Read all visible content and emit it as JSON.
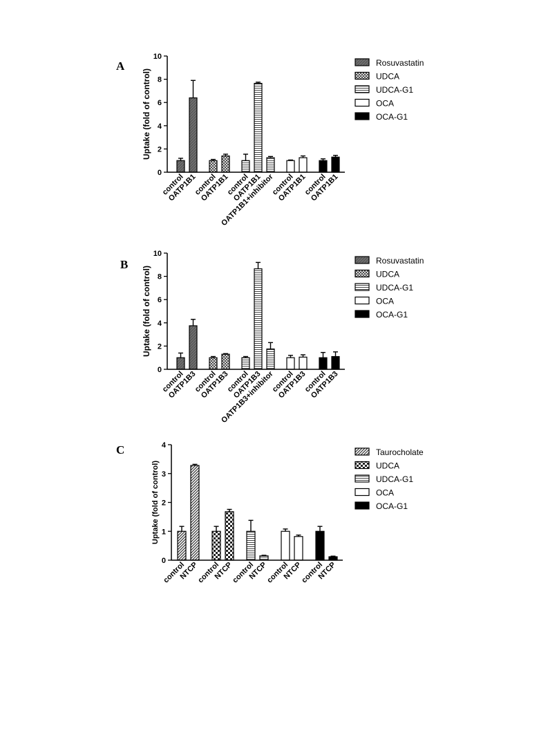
{
  "chart_data": [
    {
      "type": "bar",
      "panel": "A",
      "ylabel": "Uptake (fold of control)",
      "ylim": [
        0,
        10
      ],
      "yticks": [
        0,
        2,
        4,
        6,
        8,
        10
      ],
      "legend_position": "right",
      "legend": [
        "Rosuvastatin",
        "UDCA",
        "UDCA-G1",
        "OCA",
        "OCA-G1"
      ],
      "groups": [
        {
          "series": "Rosuvastatin",
          "pattern": "dark",
          "categories": [
            "control",
            "OATP1B1"
          ],
          "values": [
            1.0,
            6.4
          ],
          "errors": [
            0.2,
            1.5
          ]
        },
        {
          "series": "UDCA",
          "pattern": "cross",
          "categories": [
            "control",
            "OATP1B1"
          ],
          "values": [
            1.0,
            1.4
          ],
          "errors": [
            0.1,
            0.15
          ]
        },
        {
          "series": "UDCA-G1",
          "pattern": "hlines",
          "categories": [
            "control",
            "OATP1B1",
            "OATP1B1+inhibitor"
          ],
          "values": [
            1.0,
            7.65,
            1.25
          ],
          "errors": [
            0.55,
            0.1,
            0.1
          ]
        },
        {
          "series": "OCA",
          "pattern": "white",
          "categories": [
            "control",
            "OATP1B1"
          ],
          "values": [
            1.0,
            1.25
          ],
          "errors": [
            0.05,
            0.15
          ]
        },
        {
          "series": "OCA-G1",
          "pattern": "black",
          "categories": [
            "control",
            "OATP1B1"
          ],
          "values": [
            1.0,
            1.3
          ],
          "errors": [
            0.15,
            0.15
          ]
        }
      ]
    },
    {
      "type": "bar",
      "panel": "B",
      "ylabel": "Uptake (fold of control)",
      "ylim": [
        0,
        10
      ],
      "yticks": [
        0,
        2,
        4,
        6,
        8,
        10
      ],
      "legend_position": "right",
      "legend": [
        "Rosuvastatin",
        "UDCA",
        "UDCA-G1",
        "OCA",
        "OCA-G1"
      ],
      "groups": [
        {
          "series": "Rosuvastatin",
          "pattern": "dark",
          "categories": [
            "control",
            "OATP1B3"
          ],
          "values": [
            1.0,
            3.75
          ],
          "errors": [
            0.4,
            0.55
          ]
        },
        {
          "series": "UDCA",
          "pattern": "cross",
          "categories": [
            "control",
            "OATP1B3"
          ],
          "values": [
            1.0,
            1.3
          ],
          "errors": [
            0.1,
            0.05
          ]
        },
        {
          "series": "UDCA-G1",
          "pattern": "hlines",
          "categories": [
            "control",
            "OATP1B3",
            "OATP1B3+inhibitor"
          ],
          "values": [
            1.0,
            8.65,
            1.75
          ],
          "errors": [
            0.1,
            0.55,
            0.55
          ]
        },
        {
          "series": "OCA",
          "pattern": "white",
          "categories": [
            "control",
            "OATP1B3"
          ],
          "values": [
            1.0,
            1.05
          ],
          "errors": [
            0.2,
            0.2
          ]
        },
        {
          "series": "OCA-G1",
          "pattern": "black",
          "categories": [
            "control",
            "OATP1B3"
          ],
          "values": [
            1.0,
            1.1
          ],
          "errors": [
            0.45,
            0.4
          ]
        }
      ]
    },
    {
      "type": "bar",
      "panel": "C",
      "ylabel": "Uptake (fold of control)",
      "ylim": [
        0,
        4
      ],
      "yticks": [
        0,
        1,
        2,
        3,
        4
      ],
      "legend_position": "right",
      "legend": [
        "Taurocholate",
        "UDCA",
        "UDCA-G1",
        "OCA",
        "OCA-G1"
      ],
      "groups": [
        {
          "series": "Taurocholate",
          "pattern": "diag",
          "categories": [
            "control",
            "NTCP"
          ],
          "values": [
            1.0,
            3.28
          ],
          "errors": [
            0.17,
            0.04
          ]
        },
        {
          "series": "UDCA",
          "pattern": "checker",
          "categories": [
            "control",
            "NTCP"
          ],
          "values": [
            1.0,
            1.68
          ],
          "errors": [
            0.17,
            0.08
          ]
        },
        {
          "series": "UDCA-G1",
          "pattern": "hlines",
          "categories": [
            "control",
            "NTCP"
          ],
          "values": [
            1.0,
            0.15
          ],
          "errors": [
            0.38,
            0.02
          ]
        },
        {
          "series": "OCA",
          "pattern": "white",
          "categories": [
            "control",
            "NTCP"
          ],
          "values": [
            1.0,
            0.82
          ],
          "errors": [
            0.08,
            0.05
          ]
        },
        {
          "series": "OCA-G1",
          "pattern": "black",
          "categories": [
            "control",
            "NTCP"
          ],
          "values": [
            1.0,
            0.12
          ],
          "errors": [
            0.17,
            0.02
          ]
        }
      ]
    }
  ]
}
